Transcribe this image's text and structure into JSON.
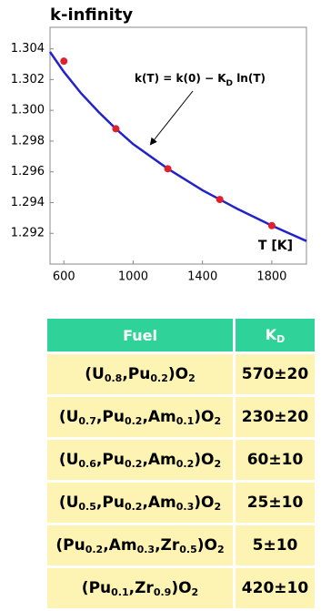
{
  "chart_data": {
    "type": "scatter",
    "title": "k-infinity",
    "xlabel": "T [K]",
    "annotation": [
      "k(T) = k(0) − K",
      "D",
      " ln(T)"
    ],
    "xlim": [
      520,
      2000
    ],
    "ylim": [
      1.29,
      1.3054
    ],
    "xticks": [
      600,
      1000,
      1400,
      1800
    ],
    "yticks": [
      1.292,
      1.294,
      1.296,
      1.298,
      {
        "value": 1.3,
        "label": "1.300"
      },
      1.302,
      1.304
    ],
    "series": [
      {
        "kind": "points",
        "color": "#e0202a",
        "x": [
          600,
          900,
          1200,
          1500,
          1800
        ],
        "values": [
          1.3032,
          1.2988,
          1.2962,
          1.2942,
          1.2925
        ]
      },
      {
        "kind": "line",
        "color": "#2222cc",
        "x": [
          520,
          600,
          700,
          800,
          900,
          1000,
          1200,
          1400,
          1600,
          1800,
          2000
        ],
        "values": [
          1.3038,
          1.3025,
          1.3011,
          1.2999,
          1.2988,
          1.2978,
          1.2962,
          1.2948,
          1.2936,
          1.2925,
          1.2915
        ]
      }
    ]
  },
  "table": {
    "header": [
      [
        "Fuel"
      ],
      [
        "K",
        "D"
      ]
    ],
    "rows": [
      [
        [
          "(U",
          "0.8",
          ",Pu",
          "0.2",
          ")O",
          "2"
        ],
        "570±20"
      ],
      [
        [
          "(U",
          "0.7",
          ",Pu",
          "0.2",
          ",Am",
          "0.1",
          ")O",
          "2"
        ],
        "230±20"
      ],
      [
        [
          "(U",
          "0.6",
          ",Pu",
          "0.2",
          ",Am",
          "0.2",
          ")O",
          "2"
        ],
        "60±10"
      ],
      [
        [
          "(U",
          "0.5",
          ",Pu",
          "0.2",
          ",Am",
          "0.3",
          ")O",
          "2"
        ],
        "25±10"
      ],
      [
        [
          "(Pu",
          "0.2",
          ",Am",
          "0.3",
          ",Zr",
          "0.5",
          ")O",
          "2"
        ],
        "5±10"
      ],
      [
        [
          "(Pu",
          "0.1",
          ",Zr",
          "0.9",
          ")O",
          "2"
        ],
        "420±10"
      ]
    ]
  }
}
